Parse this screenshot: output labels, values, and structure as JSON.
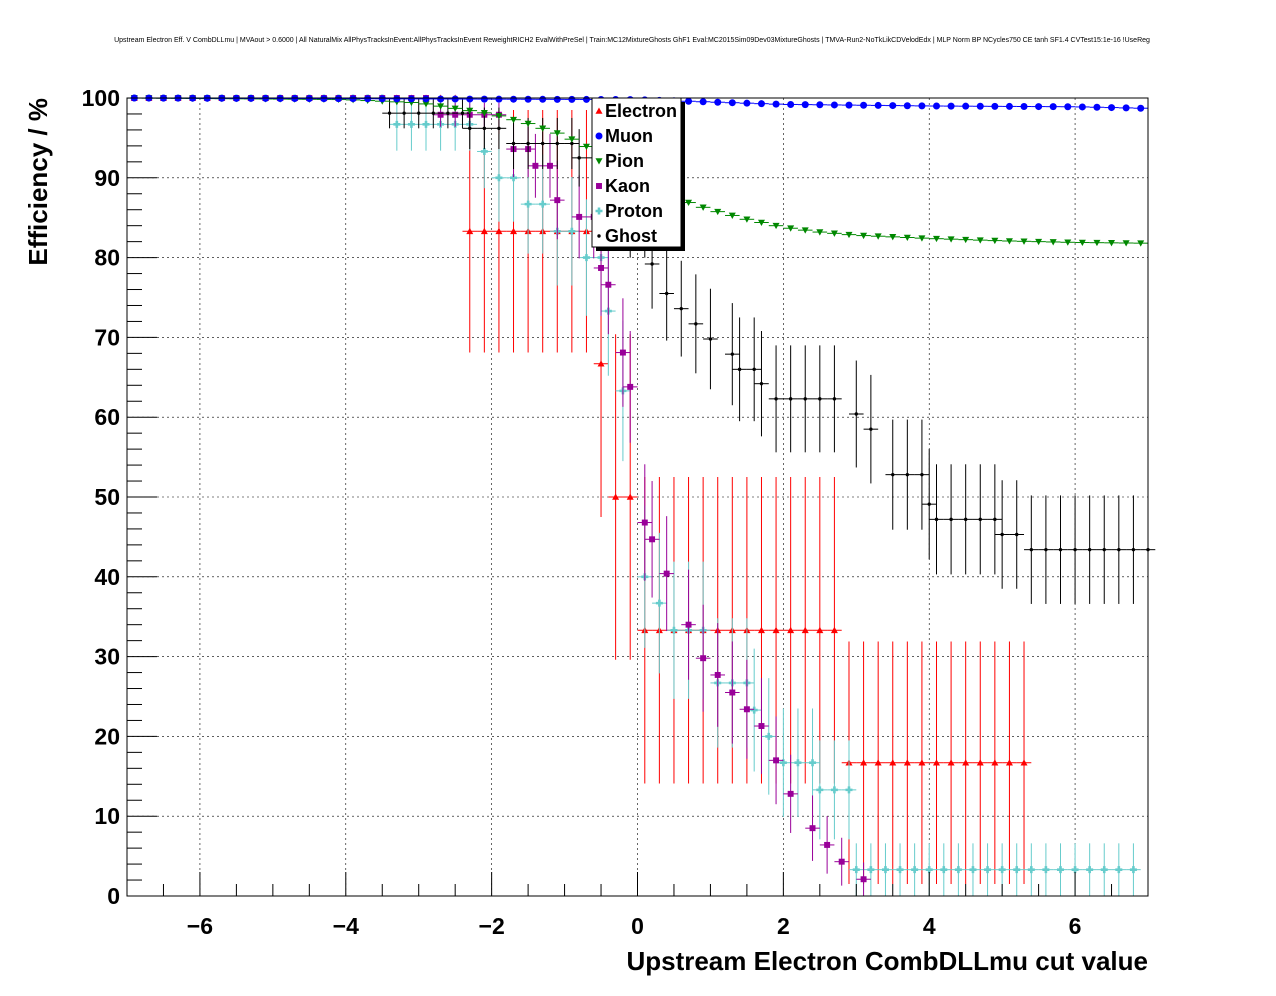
{
  "chart_data": {
    "type": "scatter",
    "title": "Upstream Electron Eff. V CombDLLmu | MVAout > 0.6000 | All NaturalMix AllPhysTracksInEvent:AllPhysTracksInEvent ReweightRICH2 EvalWithPreSel | Train:MC12MixtureGhosts GhF1 Eval:MC2015Sim09Dev03MixtureGhosts | TMVA-Run2-NoTkLikCDVelodEdx | MLP Norm BP NCycles750 CE tanh SF1.4 CVTest15:1e-16 !UseReg",
    "xlabel": "Upstream Electron CombDLLmu cut value",
    "ylabel": "Efficiency / %",
    "xlim": [
      -7,
      7
    ],
    "ylim": [
      0,
      100
    ],
    "xticks": [
      -6,
      -4,
      -2,
      0,
      2,
      4,
      6
    ],
    "xtick_labels": [
      "−6",
      "−4",
      "−2",
      "0",
      "2",
      "4",
      "6"
    ],
    "yticks": [
      0,
      10,
      20,
      30,
      40,
      50,
      60,
      70,
      80,
      90,
      100
    ],
    "ytick_labels": [
      "0",
      "10",
      "20",
      "30",
      "40",
      "50",
      "60",
      "70",
      "80",
      "90",
      "100"
    ],
    "grid": true,
    "legend_position": "top-center",
    "series": [
      {
        "name": "Electron",
        "color": "#ff0000",
        "marker": "triangle-up",
        "points": [
          {
            "x0": -7.0,
            "x1": -2.4,
            "y": 100,
            "err": 0
          },
          {
            "x0": -2.4,
            "x1": -0.6,
            "y": 83.3,
            "err": 15.2
          },
          {
            "x0": -0.6,
            "x1": -0.4,
            "y": 66.7,
            "err": 19.2
          },
          {
            "x0": -0.4,
            "x1": 0.0,
            "y": 50.0,
            "err": 20.4
          },
          {
            "x0": 0.0,
            "x1": 2.8,
            "y": 33.3,
            "err": 19.2
          },
          {
            "x0": 2.8,
            "x1": 5.3,
            "y": 16.7,
            "err": 15.2
          }
        ]
      },
      {
        "name": "Muon",
        "color": "#0000ff",
        "marker": "circle",
        "x": [
          -7.0,
          0.0,
          2.0,
          4.0,
          6.0,
          7.0
        ],
        "y": [
          100.0,
          99.8,
          99.2,
          99.0,
          98.9,
          98.7
        ]
      },
      {
        "name": "Pion",
        "color": "#008800",
        "marker": "triangle-down",
        "x": [
          -7.0,
          -4.0,
          -3.0,
          -2.0,
          -1.5,
          -1.0,
          -0.5,
          0.0,
          0.5,
          1.0,
          1.5,
          2.0,
          2.5,
          3.0,
          3.5,
          4.0,
          5.0,
          6.0,
          7.0
        ],
        "y": [
          100.0,
          99.8,
          99.4,
          98.0,
          96.8,
          95.3,
          93.0,
          90.0,
          87.5,
          86.0,
          84.8,
          83.8,
          83.2,
          82.8,
          82.6,
          82.4,
          82.1,
          81.9,
          81.8
        ]
      },
      {
        "name": "Kaon",
        "color": "#990099",
        "marker": "square",
        "points": [
          {
            "x0": -7.0,
            "x1": -3.4,
            "y": 100,
            "err": 0
          },
          {
            "x0": -3.4,
            "x1": -2.8,
            "y": 100,
            "err": 0
          },
          {
            "x0": -2.8,
            "x1": -1.8,
            "y": 97.9,
            "err": 1.5
          },
          {
            "x0": -1.8,
            "x1": -1.5,
            "y": 93.6,
            "err": 3.5
          },
          {
            "x0": -1.5,
            "x1": -1.2,
            "y": 91.5,
            "err": 4.0
          },
          {
            "x0": -1.2,
            "x1": -0.9,
            "y": 87.2,
            "err": 4.9
          },
          {
            "x0": -0.9,
            "x1": -0.6,
            "y": 85.1,
            "err": 5.2
          },
          {
            "x0": -0.6,
            "x1": -0.5,
            "y": 78.7,
            "err": 6.0
          },
          {
            "x0": -0.5,
            "x1": -0.3,
            "y": 76.6,
            "err": 6.2
          },
          {
            "x0": -0.3,
            "x1": -0.2,
            "y": 68.1,
            "err": 6.8
          },
          {
            "x0": -0.2,
            "x1": 0.0,
            "y": 63.8,
            "err": 7.0
          },
          {
            "x0": 0.0,
            "x1": 0.2,
            "y": 46.8,
            "err": 7.3
          },
          {
            "x0": 0.1,
            "x1": 0.3,
            "y": 44.7,
            "err": 7.3
          },
          {
            "x0": 0.3,
            "x1": 0.6,
            "y": 40.4,
            "err": 7.2
          },
          {
            "x0": 0.6,
            "x1": 0.8,
            "y": 34.0,
            "err": 6.9
          },
          {
            "x0": 0.8,
            "x1": 1.0,
            "y": 29.8,
            "err": 6.7
          },
          {
            "x0": 1.0,
            "x1": 1.2,
            "y": 27.7,
            "err": 6.5
          },
          {
            "x0": 1.2,
            "x1": 1.4,
            "y": 25.5,
            "err": 6.4
          },
          {
            "x0": 1.4,
            "x1": 1.6,
            "y": 23.4,
            "err": 6.2
          },
          {
            "x0": 1.6,
            "x1": 1.8,
            "y": 21.3,
            "err": 6.0
          },
          {
            "x0": 1.8,
            "x1": 2.0,
            "y": 17.0,
            "err": 5.5
          },
          {
            "x0": 2.0,
            "x1": 2.3,
            "y": 12.8,
            "err": 4.9
          },
          {
            "x0": 2.3,
            "x1": 2.5,
            "y": 8.5,
            "err": 4.1
          },
          {
            "x0": 2.5,
            "x1": 2.7,
            "y": 6.4,
            "err": 3.6
          },
          {
            "x0": 2.7,
            "x1": 3.0,
            "y": 4.3,
            "err": 3.0
          },
          {
            "x0": 3.0,
            "x1": 3.3,
            "y": 2.1,
            "err": 2.1
          }
        ]
      },
      {
        "name": "Proton",
        "color": "#66cccc",
        "marker": "cross",
        "points": [
          {
            "x0": -7.0,
            "x1": -3.4,
            "y": 100,
            "err": 0
          },
          {
            "x0": -3.4,
            "x1": -2.4,
            "y": 96.7,
            "err": 3.3
          },
          {
            "x0": -2.4,
            "x1": -2.2,
            "y": 96.7,
            "err": 3.3
          },
          {
            "x0": -2.2,
            "x1": -2.0,
            "y": 93.3,
            "err": 4.6
          },
          {
            "x0": -2.0,
            "x1": -1.6,
            "y": 90.0,
            "err": 5.5
          },
          {
            "x0": -1.6,
            "x1": -1.2,
            "y": 86.7,
            "err": 6.2
          },
          {
            "x0": -1.2,
            "x1": -0.8,
            "y": 83.3,
            "err": 6.8
          },
          {
            "x0": -0.8,
            "x1": -0.5,
            "y": 80.0,
            "err": 7.3
          },
          {
            "x0": -0.5,
            "x1": -0.3,
            "y": 73.3,
            "err": 8.1
          },
          {
            "x0": -0.3,
            "x1": 0.0,
            "y": 63.3,
            "err": 8.8
          },
          {
            "x0": 0.0,
            "x1": 0.2,
            "y": 40.0,
            "err": 8.9
          },
          {
            "x0": 0.2,
            "x1": 0.4,
            "y": 36.7,
            "err": 8.8
          },
          {
            "x0": 0.4,
            "x1": 1.0,
            "y": 33.3,
            "err": 8.6
          },
          {
            "x0": 1.0,
            "x1": 1.5,
            "y": 26.7,
            "err": 8.1
          },
          {
            "x0": 1.5,
            "x1": 1.7,
            "y": 23.3,
            "err": 7.7
          },
          {
            "x0": 1.7,
            "x1": 1.9,
            "y": 20.0,
            "err": 7.3
          },
          {
            "x0": 1.9,
            "x1": 2.4,
            "y": 16.7,
            "err": 6.8
          },
          {
            "x0": 2.4,
            "x1": 2.9,
            "y": 13.3,
            "err": 6.2
          },
          {
            "x0": 2.9,
            "x1": 7.0,
            "y": 3.3,
            "err": 3.3
          }
        ]
      },
      {
        "name": "Ghost",
        "color": "#000000",
        "marker": "dot",
        "points": [
          {
            "x0": -7.0,
            "x1": -3.5,
            "y": 100,
            "err": 0
          },
          {
            "x0": -3.5,
            "x1": -2.4,
            "y": 98.1,
            "err": 1.9
          },
          {
            "x0": -2.4,
            "x1": -1.8,
            "y": 96.2,
            "err": 2.6
          },
          {
            "x0": -1.8,
            "x1": -0.9,
            "y": 94.3,
            "err": 3.2
          },
          {
            "x0": -0.9,
            "x1": -0.6,
            "y": 92.5,
            "err": 3.6
          },
          {
            "x0": -0.6,
            "x1": -0.4,
            "y": 90.6,
            "err": 4.0
          },
          {
            "x0": -0.4,
            "x1": -0.2,
            "y": 88.7,
            "err": 4.4
          },
          {
            "x0": -0.2,
            "x1": 0.1,
            "y": 84.9,
            "err": 4.9
          },
          {
            "x0": 0.1,
            "x1": 0.3,
            "y": 79.2,
            "err": 5.6
          },
          {
            "x0": 0.3,
            "x1": 0.5,
            "y": 75.5,
            "err": 5.9
          },
          {
            "x0": 0.5,
            "x1": 0.7,
            "y": 73.6,
            "err": 6.0
          },
          {
            "x0": 0.7,
            "x1": 0.9,
            "y": 71.7,
            "err": 6.2
          },
          {
            "x0": 0.9,
            "x1": 1.2,
            "y": 69.8,
            "err": 6.3
          },
          {
            "x0": 1.2,
            "x1": 1.3,
            "y": 67.9,
            "err": 6.4
          },
          {
            "x0": 1.3,
            "x1": 1.6,
            "y": 66.0,
            "err": 6.5
          },
          {
            "x0": 1.6,
            "x1": 1.8,
            "y": 64.2,
            "err": 6.6
          },
          {
            "x0": 1.8,
            "x1": 2.9,
            "y": 62.3,
            "err": 6.7
          },
          {
            "x0": 2.9,
            "x1": 3.1,
            "y": 60.4,
            "err": 6.7
          },
          {
            "x0": 3.1,
            "x1": 3.4,
            "y": 58.5,
            "err": 6.8
          },
          {
            "x0": 3.4,
            "x1": 3.9,
            "y": 52.8,
            "err": 6.9
          },
          {
            "x0": 3.9,
            "x1": 4.0,
            "y": 49.1,
            "err": 6.9
          },
          {
            "x0": 4.0,
            "x1": 4.9,
            "y": 47.2,
            "err": 6.9
          },
          {
            "x0": 4.9,
            "x1": 5.3,
            "y": 45.3,
            "err": 6.8
          },
          {
            "x0": 5.3,
            "x1": 7.0,
            "y": 43.4,
            "err": 6.8
          }
        ]
      }
    ]
  }
}
